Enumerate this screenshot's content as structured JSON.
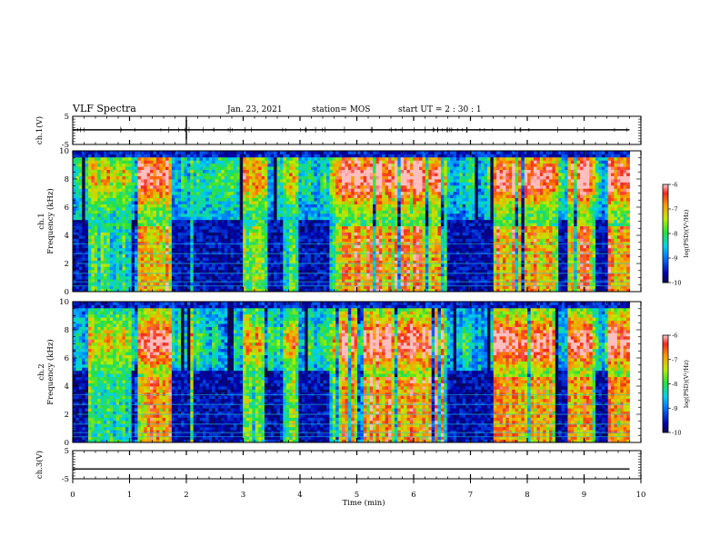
{
  "header": {
    "title": "VLF Spectra",
    "date": "Jan. 23, 2021",
    "station": "station= MOS",
    "start": "start UT =  2 : 30 : 1"
  },
  "chart_data": {
    "type": "heatmap",
    "x_axis": {
      "label": "Time (min)",
      "range": [
        0,
        10
      ],
      "ticks": [
        "0",
        "1",
        "2",
        "3",
        "4",
        "5",
        "6",
        "7",
        "8",
        "9",
        "10"
      ]
    },
    "waveform_panels": [
      {
        "ylabel": "ch.1(V)",
        "ylim": [
          -5,
          5
        ],
        "ticks": [
          "5",
          "-5"
        ],
        "baseline": 0.2
      },
      {
        "ylabel": "ch.3(V)",
        "ylim": [
          -5,
          5
        ],
        "ticks": [
          "5",
          "-5"
        ],
        "baseline": -1.5
      }
    ],
    "spectrogram_panels": [
      {
        "ylabel": "ch.1",
        "ylabel2": "Frequency (kHz)",
        "ylim": [
          0,
          10
        ],
        "ticks": [
          "0",
          "2",
          "4",
          "6",
          "8",
          "10"
        ],
        "band_center_khz": 8.0
      },
      {
        "ylabel": "ch.2",
        "ylabel2": "Frequency (kHz)",
        "ylim": [
          0,
          10
        ],
        "ticks": [
          "0",
          "2",
          "4",
          "6",
          "8",
          "10"
        ],
        "band_center_khz": 7.0
      }
    ],
    "colorbar": {
      "label": "log(PSD)(V²/Hz)",
      "range": [
        -10,
        -6
      ],
      "ticks": [
        "-6",
        "-7",
        "-8",
        "-9",
        "-10"
      ]
    },
    "quiet_intervals_min": [
      [
        0.0,
        0.25
      ],
      [
        1.0,
        1.05
      ],
      [
        1.7,
        2.05
      ],
      [
        2.1,
        2.95
      ],
      [
        3.4,
        3.7
      ],
      [
        3.95,
        4.5
      ],
      [
        6.55,
        7.4
      ],
      [
        8.5,
        8.7
      ],
      [
        9.15,
        9.4
      ]
    ],
    "active_intervals_min": [
      [
        1.05,
        1.7
      ],
      [
        4.6,
        6.5
      ],
      [
        7.4,
        8.4
      ],
      [
        8.7,
        9.1
      ],
      [
        9.4,
        9.8
      ]
    ],
    "data_end_min": 9.8
  }
}
